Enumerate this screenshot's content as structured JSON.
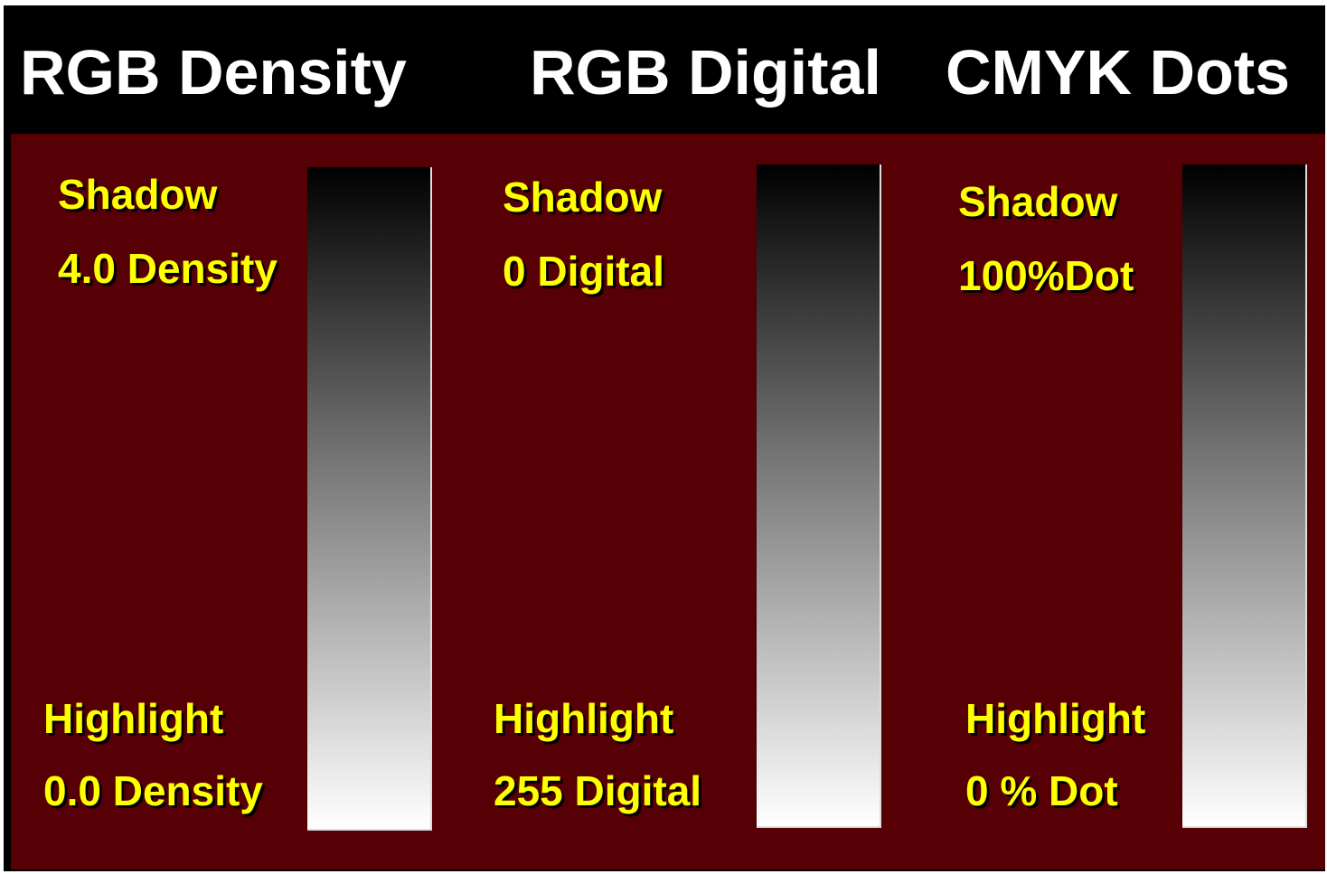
{
  "columns": [
    {
      "title": "RGB Density",
      "shadow_label": "Shadow",
      "shadow_value": "4.0 Density",
      "highlight_label": "Highlight",
      "highlight_value": "0.0 Density"
    },
    {
      "title": "RGB Digital",
      "shadow_label": "Shadow",
      "shadow_value": "0 Digital",
      "highlight_label": "Highlight",
      "highlight_value": "255 Digital"
    },
    {
      "title": "CMYK Dots",
      "shadow_label": "Shadow",
      "shadow_value": "100%Dot",
      "highlight_label": "Highlight",
      "highlight_value": "0 % Dot"
    }
  ]
}
